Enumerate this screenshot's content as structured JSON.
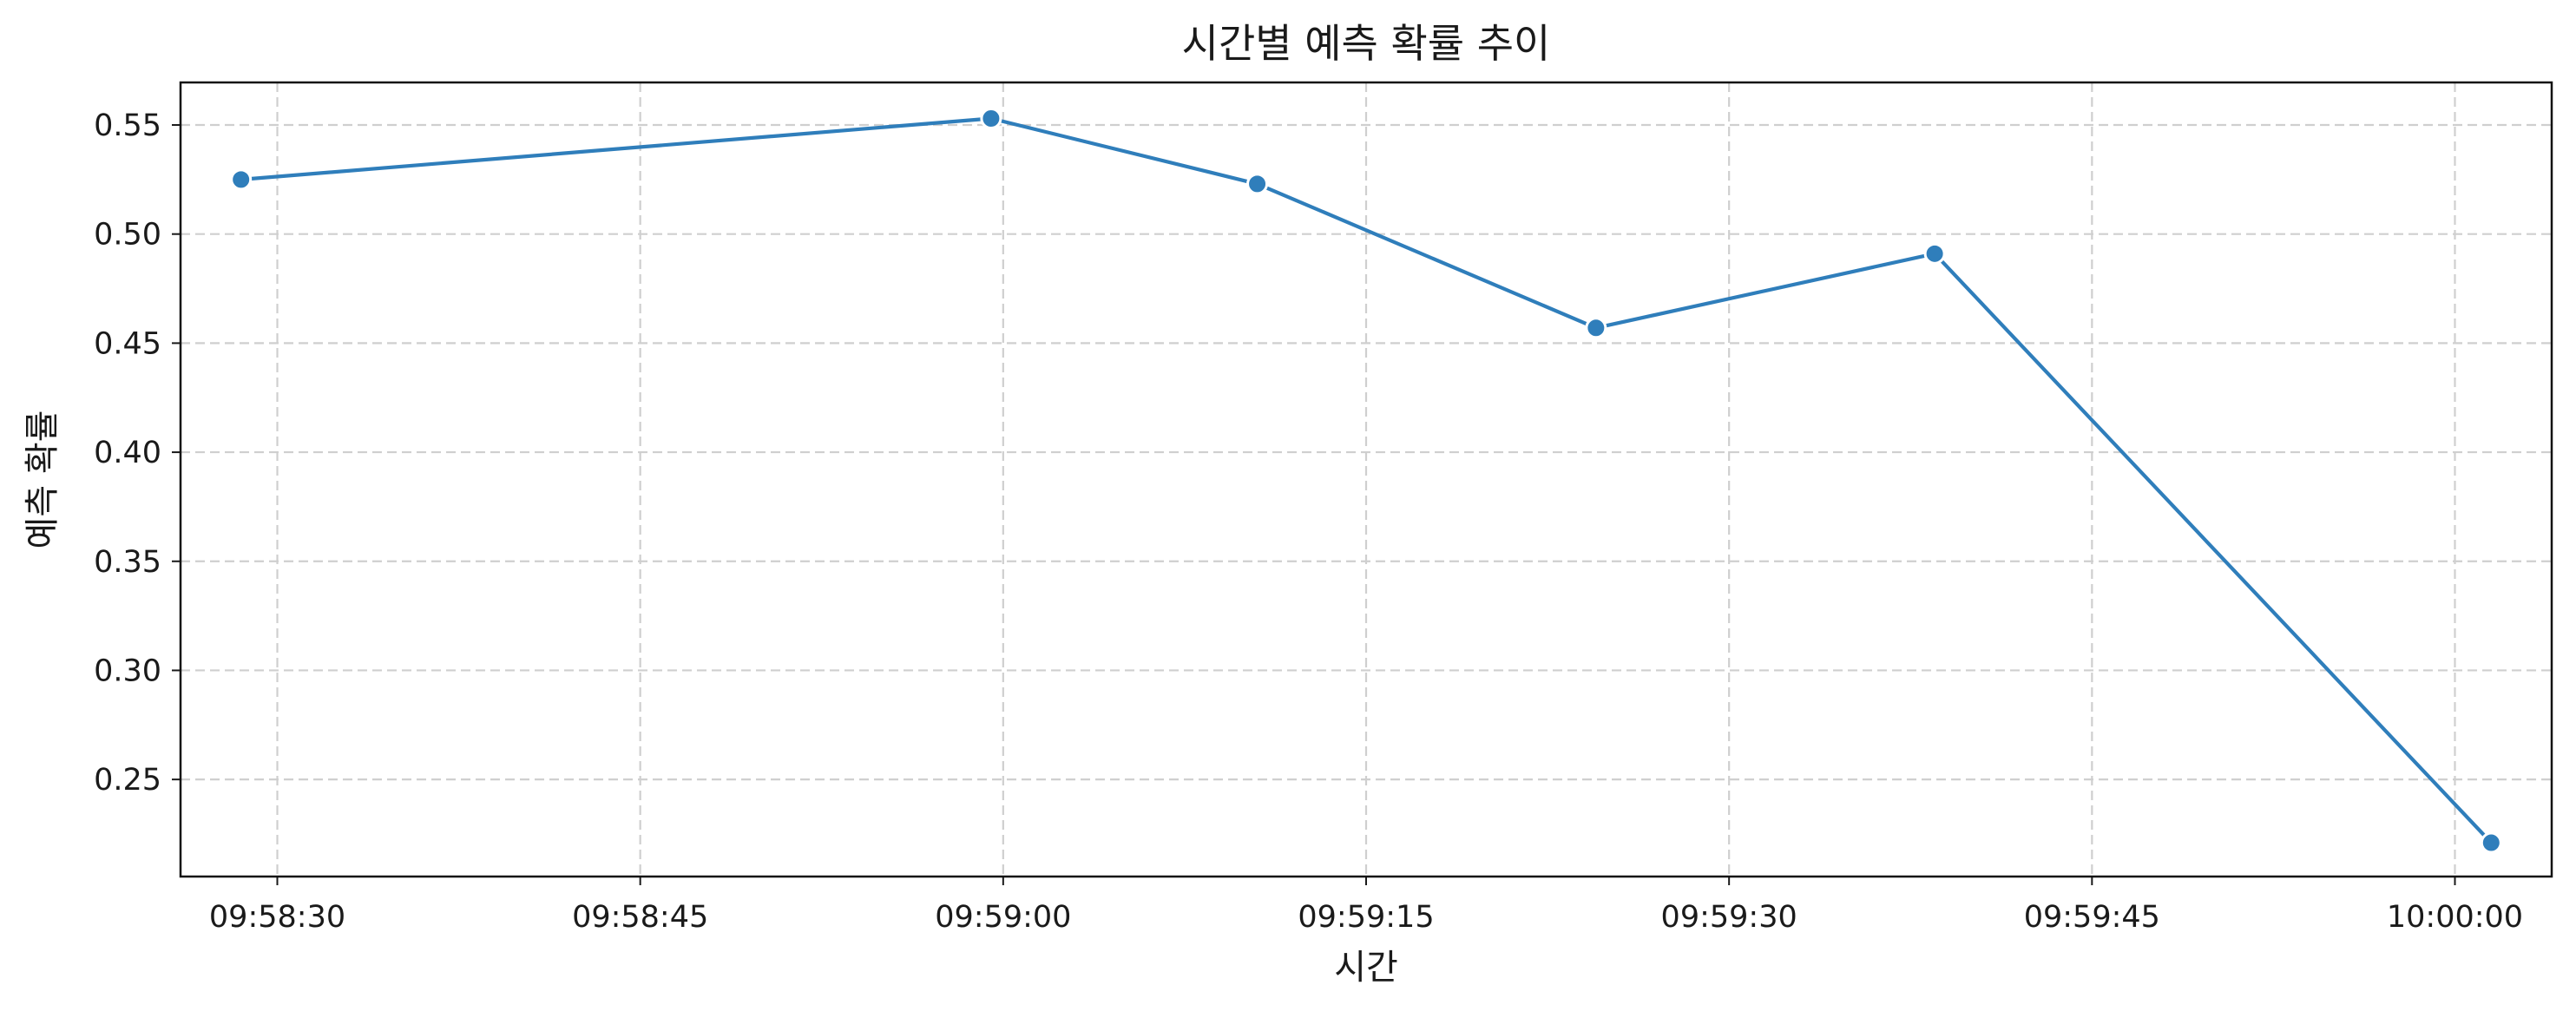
{
  "chart_data": {
    "type": "line",
    "title": "시간별 예측 확률 추이",
    "xlabel": "시간",
    "ylabel": "예측 확률",
    "x_axis_type": "time",
    "xlim": [
      "09:58:26",
      "10:00:04"
    ],
    "ylim": [
      0.2055,
      0.5695
    ],
    "x_ticks": [
      "09:58:30",
      "09:58:45",
      "09:59:00",
      "09:59:15",
      "09:59:30",
      "09:59:45",
      "10:00:00"
    ],
    "y_ticks": [
      0.25,
      0.3,
      0.35,
      0.4,
      0.45,
      0.5,
      0.55
    ],
    "y_tick_labels": [
      "0.25",
      "0.30",
      "0.35",
      "0.40",
      "0.45",
      "0.50",
      "0.55"
    ],
    "grid": true,
    "series": [
      {
        "color": "#2f7ebb",
        "marker": "circle",
        "x": [
          "09:58:28.5",
          "09:58:59.5",
          "09:59:10.5",
          "09:59:24.5",
          "09:59:38.5",
          "10:00:01.5"
        ],
        "values": [
          0.525,
          0.553,
          0.523,
          0.457,
          0.491,
          0.221
        ]
      }
    ]
  }
}
